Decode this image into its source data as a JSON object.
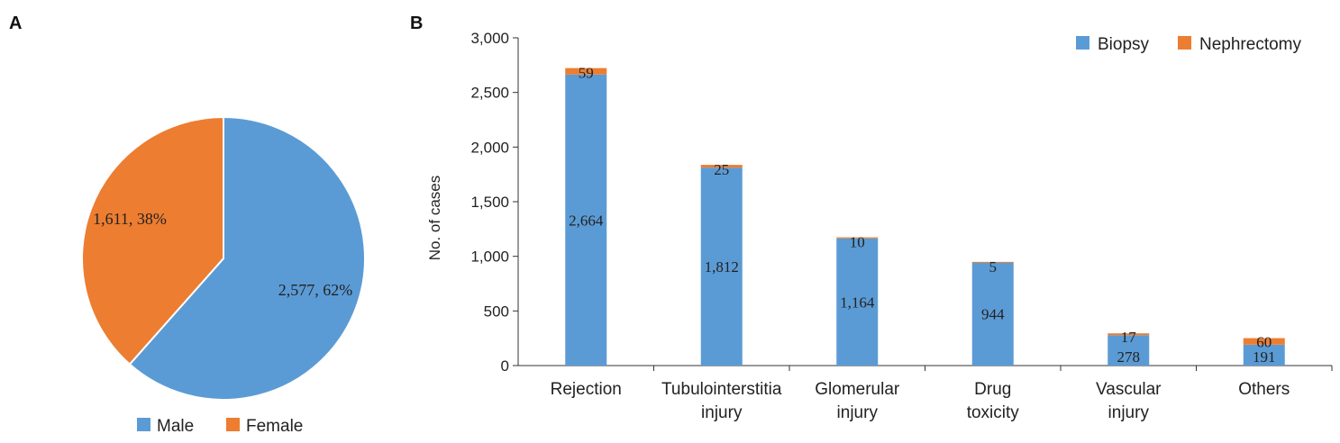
{
  "panels": {
    "a_letter": "A",
    "b_letter": "B"
  },
  "colors": {
    "blue": "#5b9bd5",
    "orange": "#ed7d31"
  },
  "chart_data": [
    {
      "type": "pie",
      "slices": [
        {
          "name": "Male",
          "value": 2577,
          "percent": 62,
          "label": "2,577, 62%",
          "color": "#5b9bd5"
        },
        {
          "name": "Female",
          "value": 1611,
          "percent": 38,
          "label": "1,611, 38%",
          "color": "#ed7d31"
        }
      ],
      "legend_position": "bottom"
    },
    {
      "type": "bar",
      "stacked": true,
      "categories": [
        [
          "Rejection"
        ],
        [
          "Tubulointerstitia",
          "injury"
        ],
        [
          "Glomerular",
          "injury"
        ],
        [
          "Drug",
          "toxicity"
        ],
        [
          "Vascular",
          "injury"
        ],
        [
          "Others"
        ]
      ],
      "series": [
        {
          "name": "Biopsy",
          "values": [
            2664,
            1812,
            1164,
            944,
            278,
            191
          ],
          "labels": [
            "2,664",
            "1,812",
            "1,164",
            "944",
            "278",
            "191"
          ],
          "color": "#5b9bd5"
        },
        {
          "name": "Nephrectomy",
          "values": [
            59,
            25,
            10,
            5,
            17,
            60
          ],
          "labels": [
            "59",
            "25",
            "10",
            "5",
            "17",
            "60"
          ],
          "color": "#ed7d31"
        }
      ],
      "ylabel": "No. of cases",
      "xlabel": "",
      "ylim": [
        0,
        3000
      ],
      "yticks": [
        0,
        500,
        1000,
        1500,
        2000,
        2500,
        3000
      ],
      "ytick_labels": [
        "0",
        "500",
        "1,000",
        "1,500",
        "2,000",
        "2,500",
        "3,000"
      ],
      "grid": false,
      "legend_position": "top-right"
    }
  ]
}
